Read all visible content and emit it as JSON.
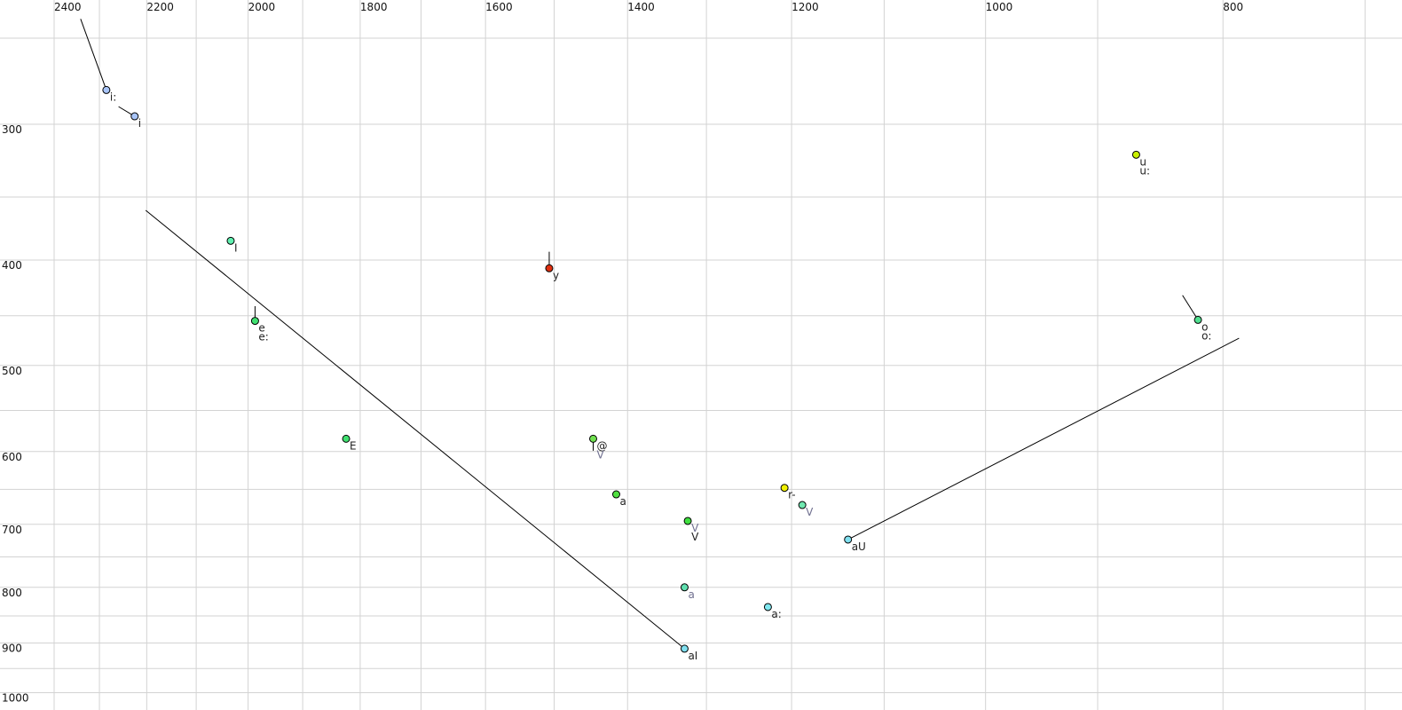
{
  "chart_data": {
    "type": "scatter",
    "title": "",
    "xlabel": "",
    "ylabel": "",
    "x_axis": {
      "scale": "log",
      "reversed": true,
      "position": "top",
      "range": [
        2400,
        700
      ],
      "ticks": [
        2400,
        2200,
        2000,
        1800,
        1600,
        1400,
        1200,
        1000,
        800
      ],
      "gridlines_every": 100
    },
    "y_axis": {
      "scale": "log",
      "reversed": false,
      "position": "left",
      "range": [
        231,
        1020
      ],
      "ticks": [
        300,
        400,
        500,
        600,
        700,
        800,
        900,
        1000
      ],
      "gridlines_every": 50
    },
    "grid": true,
    "grid_color": "#d3d3d3",
    "points": [
      {
        "f2": 2285,
        "f1": 279,
        "color": "#a8c4f8",
        "labels": [
          {
            "text": "i:",
            "color": "#222222"
          }
        ],
        "trajectory_from": [
          2341,
          240
        ]
      },
      {
        "f2": 2225,
        "f1": 295,
        "color": "#a8c4f8",
        "labels": [
          {
            "text": "i",
            "color": "#222222"
          }
        ],
        "trajectory_from": [
          2259,
          289
        ]
      },
      {
        "f2": 2033,
        "f1": 384,
        "color": "#60f0b0",
        "labels": [
          {
            "text": "I",
            "color": "#222222"
          }
        ]
      },
      {
        "f2": 1987,
        "f1": 455,
        "color": "#40e070",
        "labels": [
          {
            "text": "e",
            "color": "#222222"
          },
          {
            "text": "e:",
            "color": "#222222"
          }
        ],
        "trajectory_from": [
          1987,
          441
        ]
      },
      {
        "f2": 1824,
        "f1": 584,
        "color": "#40e070",
        "labels": [
          {
            "text": "E",
            "color": "#222222"
          }
        ]
      },
      {
        "f2": 1507,
        "f1": 407,
        "color": "#e03010",
        "labels": [
          {
            "text": "y",
            "color": "#222222"
          }
        ],
        "trajectory_from": [
          1507,
          393
        ]
      },
      {
        "f2": 1446,
        "f1": 584,
        "color": "#70e050",
        "labels": [
          {
            "text": "@",
            "color": "#222222"
          },
          {
            "text": "V",
            "color": "#707090"
          }
        ],
        "trajectory_from": [
          1446,
          599
        ]
      },
      {
        "f2": 1415,
        "f1": 657,
        "color": "#50e040",
        "labels": [
          {
            "text": "a",
            "color": "#222222"
          }
        ]
      },
      {
        "f2": 1323,
        "f1": 695,
        "color": "#40e040",
        "labels": [
          {
            "text": "V",
            "color": "#707090"
          },
          {
            "text": "V",
            "color": "#222222"
          }
        ]
      },
      {
        "f2": 1327,
        "f1": 800,
        "color": "#60e0b0",
        "labels": [
          {
            "text": "a",
            "color": "#707090"
          }
        ]
      },
      {
        "f2": 1327,
        "f1": 911,
        "color": "#80e0f0",
        "labels": [
          {
            "text": "aI",
            "color": "#222222"
          }
        ],
        "trajectory_from": [
          2202,
          360
        ]
      },
      {
        "f2": 1227,
        "f1": 834,
        "color": "#80e8f0",
        "labels": [
          {
            "text": "a:",
            "color": "#222222"
          }
        ]
      },
      {
        "f2": 1208,
        "f1": 648,
        "color": "#f0f000",
        "labels": [
          {
            "text": "r-",
            "color": "#222222"
          }
        ],
        "trajectory_from": [
          1208,
          643
        ]
      },
      {
        "f2": 1188,
        "f1": 672,
        "color": "#70e8b0",
        "labels": [
          {
            "text": "V",
            "color": "#707090"
          }
        ]
      },
      {
        "f2": 1138,
        "f1": 723,
        "color": "#80e0f0",
        "labels": [
          {
            "text": "aU",
            "color": "#222222"
          }
        ],
        "trajectory_to": [
          788,
          472
        ]
      },
      {
        "f2": 868,
        "f1": 320,
        "color": "#c8f000",
        "labels": [
          {
            "text": "u",
            "color": "#222222"
          },
          {
            "text": "u:",
            "color": "#222222"
          }
        ]
      },
      {
        "f2": 819,
        "f1": 454,
        "color": "#50e090",
        "labels": [
          {
            "text": "o",
            "color": "#222222"
          },
          {
            "text": "o:",
            "color": "#222222"
          }
        ],
        "trajectory_from": [
          831,
          431
        ]
      }
    ]
  }
}
